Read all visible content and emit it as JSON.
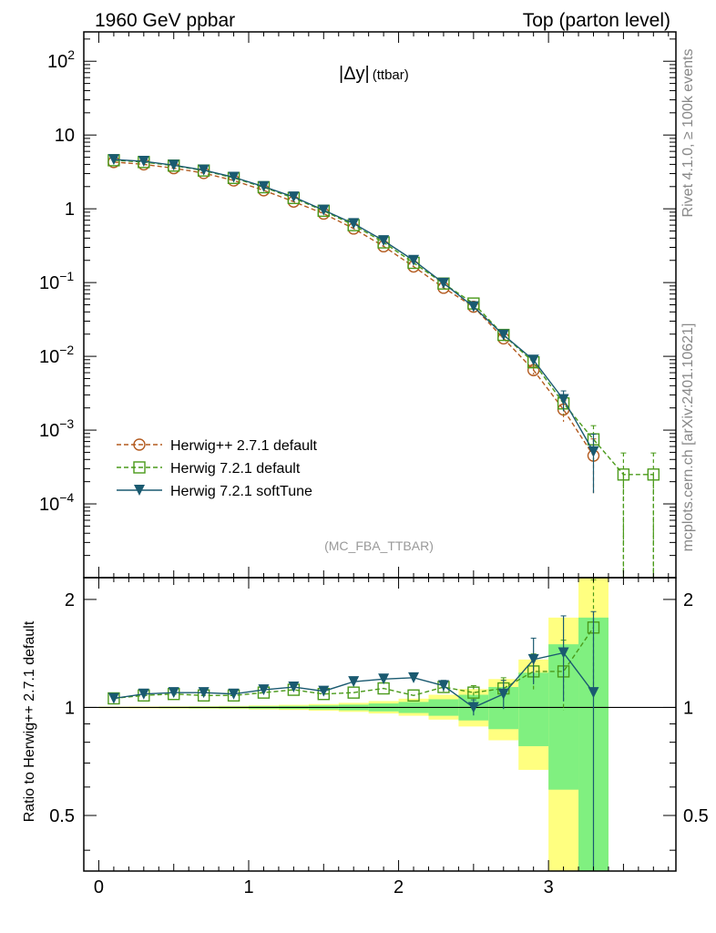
{
  "header": {
    "left": "1960 GeV ppbar",
    "right": "Top (parton level)"
  },
  "side_labels": {
    "version": "Rivet 4.1.0, ≥ 100k events",
    "source": "mcplots.cern.ch [arXiv:2401.10621]"
  },
  "chart_data": [
    {
      "type": "line",
      "panel": "main",
      "title": "|Δy| (ttbar)",
      "title_main": "|Δy|",
      "title_sub": "(ttbar)",
      "analysis_label": "(MC_FBA_TTBAR)",
      "xlim": [
        -0.1,
        3.85
      ],
      "ylim": [
        1e-05,
        250
      ],
      "yscale": "log",
      "y_ticks": [
        {
          "v": 100,
          "label": "10",
          "sup": "2"
        },
        {
          "v": 10,
          "label": "10",
          "sup": ""
        },
        {
          "v": 1,
          "label": "1",
          "sup": ""
        },
        {
          "v": 0.1,
          "label": "10",
          "sup": "−1"
        },
        {
          "v": 0.01,
          "label": "10",
          "sup": "−2"
        },
        {
          "v": 0.001,
          "label": "10",
          "sup": "−3"
        },
        {
          "v": 0.0001,
          "label": "10",
          "sup": "−4"
        }
      ],
      "legend_position": "lower-left",
      "series": [
        {
          "name": "Herwig++ 2.7.1 default",
          "color": "#b35a1f",
          "marker": "circle",
          "dashed": true,
          "x": [
            0.1,
            0.3,
            0.5,
            0.7,
            0.9,
            1.1,
            1.3,
            1.5,
            1.7,
            1.9,
            2.1,
            2.3,
            2.5,
            2.7,
            2.9,
            3.1,
            3.3
          ],
          "y": [
            4.3,
            4.0,
            3.55,
            3.05,
            2.42,
            1.78,
            1.25,
            0.86,
            0.54,
            0.31,
            0.165,
            0.085,
            0.047,
            0.0175,
            0.0065,
            0.0019,
            0.00045
          ],
          "err": [
            0,
            0,
            0,
            0,
            0,
            0,
            0,
            0,
            0,
            0,
            0,
            0,
            0,
            0.0008,
            0.0008,
            0.0006,
            0.00031
          ]
        },
        {
          "name": "Herwig 7.2.1 default",
          "color": "#4a9a1a",
          "marker": "square",
          "dashed": true,
          "x": [
            0.1,
            0.3,
            0.5,
            0.7,
            0.9,
            1.1,
            1.3,
            1.5,
            1.7,
            1.9,
            2.1,
            2.3,
            2.5,
            2.7,
            2.9,
            3.1,
            3.3,
            3.5,
            3.7
          ],
          "y": [
            4.55,
            4.3,
            3.85,
            3.3,
            2.62,
            1.96,
            1.4,
            0.94,
            0.6,
            0.35,
            0.185,
            0.097,
            0.052,
            0.0195,
            0.0083,
            0.0023,
            0.00075,
            0.00025,
            0.00025
          ],
          "err": [
            0,
            0,
            0,
            0,
            0,
            0,
            0,
            0,
            0,
            0,
            0,
            0,
            0,
            0.0015,
            0.0012,
            0.0007,
            0.0004,
            0.00024,
            0.00024
          ]
        },
        {
          "name": "Herwig 7.2.1 softTune",
          "color": "#1a5a70",
          "marker": "triangle-down",
          "dashed": false,
          "x": [
            0.1,
            0.3,
            0.5,
            0.7,
            0.9,
            1.1,
            1.3,
            1.5,
            1.7,
            1.9,
            2.1,
            2.3,
            2.5,
            2.7,
            2.9,
            3.1,
            3.3
          ],
          "y": [
            4.65,
            4.4,
            3.9,
            3.35,
            2.68,
            2.0,
            1.45,
            0.96,
            0.63,
            0.37,
            0.2,
            0.098,
            0.047,
            0.0195,
            0.0089,
            0.0026,
            0.00051
          ],
          "err": [
            0,
            0,
            0,
            0,
            0,
            0,
            0,
            0,
            0,
            0,
            0,
            0,
            0,
            0.0012,
            0.001,
            0.0008,
            0.00037
          ]
        }
      ]
    },
    {
      "type": "line",
      "panel": "ratio",
      "ylabel": "Ratio to Herwig++ 2.7.1 default",
      "xlim": [
        -0.1,
        3.85
      ],
      "ylim": [
        0.35,
        2.3
      ],
      "yscale": "log",
      "x_ticks": [
        0,
        1,
        2,
        3
      ],
      "y_ticks": [
        0.5,
        1,
        2
      ],
      "y_tick_labels": [
        "0.5",
        "1",
        "2"
      ],
      "reference": 1,
      "bands": {
        "bin_edges": [
          0.0,
          0.2,
          0.4,
          0.6,
          0.8,
          1.0,
          1.2,
          1.4,
          1.6,
          1.8,
          2.0,
          2.2,
          2.4,
          2.6,
          2.8,
          3.0,
          3.2,
          3.4
        ],
        "yellow_lo": [
          0.995,
          0.994,
          0.993,
          0.992,
          0.99,
          0.987,
          0.984,
          0.979,
          0.972,
          0.962,
          0.948,
          0.925,
          0.885,
          0.81,
          0.67,
          0.35,
          0.35
        ],
        "yellow_hi": [
          1.005,
          1.006,
          1.007,
          1.008,
          1.01,
          1.013,
          1.017,
          1.022,
          1.03,
          1.042,
          1.058,
          1.085,
          1.125,
          1.2,
          1.36,
          1.78,
          2.3
        ],
        "green_lo": [
          0.997,
          0.997,
          0.996,
          0.995,
          0.994,
          0.992,
          0.99,
          0.987,
          0.982,
          0.975,
          0.965,
          0.948,
          0.92,
          0.87,
          0.78,
          0.59,
          0.35
        ],
        "green_hi": [
          1.003,
          1.003,
          1.004,
          1.005,
          1.006,
          1.008,
          1.01,
          1.013,
          1.018,
          1.026,
          1.036,
          1.054,
          1.085,
          1.14,
          1.25,
          1.5,
          1.78
        ]
      },
      "series": [
        {
          "name": "Herwig 7.2.1 default",
          "x": [
            0.1,
            0.3,
            0.5,
            0.7,
            0.9,
            1.1,
            1.3,
            1.5,
            1.7,
            1.9,
            2.1,
            2.3,
            2.5,
            2.7,
            2.9,
            3.1,
            3.3
          ],
          "y": [
            1.06,
            1.08,
            1.09,
            1.08,
            1.08,
            1.1,
            1.12,
            1.09,
            1.1,
            1.13,
            1.08,
            1.14,
            1.1,
            1.13,
            1.26,
            1.26,
            1.67
          ],
          "err": [
            0,
            0,
            0,
            0,
            0,
            0,
            0,
            0,
            0,
            0,
            0,
            0.04,
            0.05,
            0.08,
            0.15,
            0.28,
            0.6
          ]
        },
        {
          "name": "Herwig 7.2.1 softTune",
          "x": [
            0.1,
            0.3,
            0.5,
            0.7,
            0.9,
            1.1,
            1.3,
            1.5,
            1.7,
            1.9,
            2.1,
            2.3,
            2.5,
            2.7,
            2.9,
            3.1,
            3.3
          ],
          "y": [
            1.06,
            1.09,
            1.1,
            1.1,
            1.09,
            1.12,
            1.14,
            1.11,
            1.18,
            1.2,
            1.21,
            1.15,
            1.0,
            1.09,
            1.36,
            1.42,
            1.1
          ],
          "err": [
            0,
            0,
            0,
            0,
            0,
            0,
            0,
            0.02,
            0.03,
            0.03,
            0.03,
            0.04,
            0.05,
            0.1,
            0.2,
            0.38,
            0.75
          ]
        }
      ]
    }
  ]
}
